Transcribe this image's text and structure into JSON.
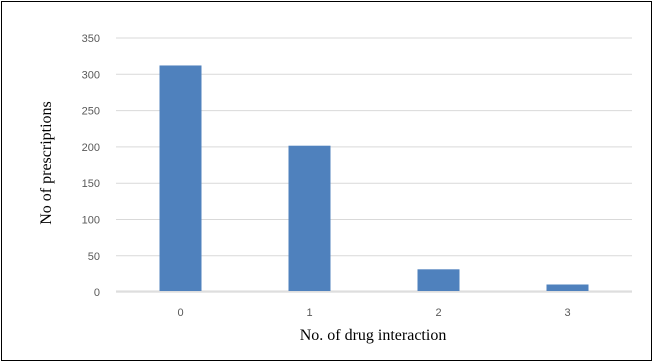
{
  "chart_data": {
    "type": "bar",
    "title": "",
    "xlabel": "No. of drug interaction",
    "ylabel": "No of prescriptions",
    "categories": [
      "0",
      "1",
      "2",
      "3"
    ],
    "values": [
      312,
      201,
      30,
      9
    ],
    "ylim": [
      0,
      350
    ],
    "yticks": [
      "350",
      "300",
      "250",
      "200",
      "150",
      "100",
      "50",
      "0"
    ],
    "grid": true,
    "legend": "none",
    "bar_color": "#4F81BD",
    "grid_color": "#D9D9D9"
  }
}
